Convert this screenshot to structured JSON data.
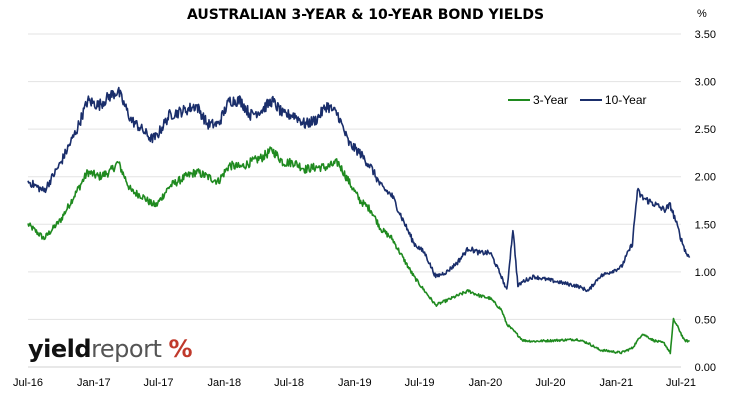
{
  "chart_data": {
    "type": "line",
    "title": "AUSTRALIAN 3-YEAR & 10-YEAR BOND YIELDS",
    "unit": "%",
    "ylim": [
      0,
      3.5
    ],
    "yticks": [
      "0.00",
      "0.50",
      "1.00",
      "1.50",
      "2.00",
      "2.50",
      "3.00",
      "3.50"
    ],
    "xlim": [
      "2016-07-01",
      "2021-07-01"
    ],
    "xticks": [
      "Jul-16",
      "Jan-17",
      "Jul-17",
      "Jan-18",
      "Jul-18",
      "Jan-19",
      "Jul-19",
      "Jan-20",
      "Jul-20",
      "Jan-21",
      "Jul-21"
    ],
    "grid": "horizontal",
    "legend_position": "top-right",
    "series": [
      {
        "name": "3-Year",
        "color": "#1f8a1f",
        "points": [
          [
            "2016-07-01",
            1.5
          ],
          [
            "2016-08-15",
            1.35
          ],
          [
            "2016-10-01",
            1.55
          ],
          [
            "2016-11-15",
            1.85
          ],
          [
            "2016-12-15",
            2.05
          ],
          [
            "2017-01-15",
            2.0
          ],
          [
            "2017-02-15",
            2.05
          ],
          [
            "2017-03-10",
            2.15
          ],
          [
            "2017-04-15",
            1.85
          ],
          [
            "2017-05-15",
            1.8
          ],
          [
            "2017-06-10",
            1.72
          ],
          [
            "2017-06-25",
            1.7
          ],
          [
            "2017-08-01",
            1.9
          ],
          [
            "2017-09-15",
            2.0
          ],
          [
            "2017-10-15",
            2.05
          ],
          [
            "2017-11-15",
            2.0
          ],
          [
            "2017-12-15",
            1.95
          ],
          [
            "2018-01-15",
            2.12
          ],
          [
            "2018-02-15",
            2.1
          ],
          [
            "2018-03-15",
            2.15
          ],
          [
            "2018-04-15",
            2.2
          ],
          [
            "2018-05-15",
            2.28
          ],
          [
            "2018-06-15",
            2.15
          ],
          [
            "2018-07-15",
            2.15
          ],
          [
            "2018-08-15",
            2.08
          ],
          [
            "2018-09-15",
            2.1
          ],
          [
            "2018-10-15",
            2.1
          ],
          [
            "2018-11-15",
            2.15
          ],
          [
            "2018-12-15",
            1.95
          ],
          [
            "2019-01-15",
            1.75
          ],
          [
            "2019-02-15",
            1.65
          ],
          [
            "2019-03-15",
            1.45
          ],
          [
            "2019-04-15",
            1.35
          ],
          [
            "2019-05-15",
            1.15
          ],
          [
            "2019-06-15",
            0.95
          ],
          [
            "2019-07-15",
            0.8
          ],
          [
            "2019-08-15",
            0.65
          ],
          [
            "2019-09-15",
            0.7
          ],
          [
            "2019-10-15",
            0.75
          ],
          [
            "2019-11-15",
            0.8
          ],
          [
            "2019-12-15",
            0.75
          ],
          [
            "2020-01-15",
            0.72
          ],
          [
            "2020-02-15",
            0.6
          ],
          [
            "2020-03-01",
            0.45
          ],
          [
            "2020-03-20",
            0.38
          ],
          [
            "2020-04-15",
            0.28
          ],
          [
            "2020-05-15",
            0.27
          ],
          [
            "2020-07-15",
            0.28
          ],
          [
            "2020-09-15",
            0.29
          ],
          [
            "2020-10-15",
            0.25
          ],
          [
            "2020-11-15",
            0.18
          ],
          [
            "2021-01-15",
            0.15
          ],
          [
            "2021-02-15",
            0.2
          ],
          [
            "2021-03-15",
            0.35
          ],
          [
            "2021-04-15",
            0.28
          ],
          [
            "2021-05-15",
            0.25
          ],
          [
            "2021-06-01",
            0.15
          ],
          [
            "2021-06-10",
            0.5
          ],
          [
            "2021-06-25",
            0.4
          ],
          [
            "2021-07-10",
            0.28
          ],
          [
            "2021-07-25",
            0.27
          ]
        ]
      },
      {
        "name": "10-Year",
        "color": "#1a2e6b",
        "points": [
          [
            "2016-07-01",
            1.95
          ],
          [
            "2016-08-15",
            1.85
          ],
          [
            "2016-10-01",
            2.15
          ],
          [
            "2016-11-15",
            2.5
          ],
          [
            "2016-12-15",
            2.8
          ],
          [
            "2017-01-15",
            2.75
          ],
          [
            "2017-02-15",
            2.85
          ],
          [
            "2017-03-10",
            2.9
          ],
          [
            "2017-04-15",
            2.6
          ],
          [
            "2017-05-15",
            2.5
          ],
          [
            "2017-06-10",
            2.4
          ],
          [
            "2017-06-25",
            2.42
          ],
          [
            "2017-08-01",
            2.65
          ],
          [
            "2017-09-15",
            2.7
          ],
          [
            "2017-10-15",
            2.75
          ],
          [
            "2017-11-15",
            2.55
          ],
          [
            "2017-12-15",
            2.55
          ],
          [
            "2018-01-15",
            2.8
          ],
          [
            "2018-02-15",
            2.8
          ],
          [
            "2018-03-15",
            2.65
          ],
          [
            "2018-04-15",
            2.7
          ],
          [
            "2018-05-15",
            2.8
          ],
          [
            "2018-06-15",
            2.65
          ],
          [
            "2018-07-15",
            2.65
          ],
          [
            "2018-08-15",
            2.55
          ],
          [
            "2018-09-15",
            2.6
          ],
          [
            "2018-10-15",
            2.75
          ],
          [
            "2018-11-15",
            2.65
          ],
          [
            "2018-12-15",
            2.35
          ],
          [
            "2019-01-15",
            2.25
          ],
          [
            "2019-02-15",
            2.1
          ],
          [
            "2019-03-15",
            1.9
          ],
          [
            "2019-04-15",
            1.8
          ],
          [
            "2019-05-15",
            1.55
          ],
          [
            "2019-06-15",
            1.3
          ],
          [
            "2019-07-15",
            1.2
          ],
          [
            "2019-08-15",
            0.95
          ],
          [
            "2019-09-15",
            1.0
          ],
          [
            "2019-10-15",
            1.1
          ],
          [
            "2019-11-15",
            1.25
          ],
          [
            "2019-12-15",
            1.2
          ],
          [
            "2020-01-15",
            1.2
          ],
          [
            "2020-02-15",
            0.95
          ],
          [
            "2020-03-01",
            0.8
          ],
          [
            "2020-03-18",
            1.45
          ],
          [
            "2020-04-01",
            0.85
          ],
          [
            "2020-04-15",
            0.9
          ],
          [
            "2020-05-15",
            0.95
          ],
          [
            "2020-07-15",
            0.9
          ],
          [
            "2020-09-15",
            0.85
          ],
          [
            "2020-10-15",
            0.8
          ],
          [
            "2020-11-15",
            0.95
          ],
          [
            "2021-01-15",
            1.05
          ],
          [
            "2021-02-15",
            1.3
          ],
          [
            "2021-03-01",
            1.85
          ],
          [
            "2021-03-15",
            1.78
          ],
          [
            "2021-04-15",
            1.72
          ],
          [
            "2021-05-15",
            1.65
          ],
          [
            "2021-06-01",
            1.7
          ],
          [
            "2021-06-15",
            1.55
          ],
          [
            "2021-07-01",
            1.35
          ],
          [
            "2021-07-15",
            1.2
          ],
          [
            "2021-07-25",
            1.15
          ]
        ]
      }
    ]
  },
  "logo": {
    "part1": "yield",
    "part2": "report",
    "symbol": "%"
  }
}
